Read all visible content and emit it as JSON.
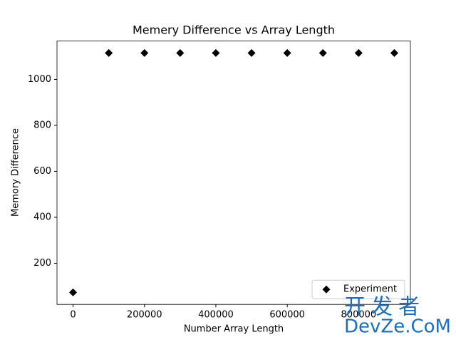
{
  "chart_data": {
    "type": "scatter",
    "title": "Memery Difference vs Array Length",
    "x_label": "Number Array Length",
    "y_label": "Memory Difference",
    "series": [
      {
        "name": "Experiment",
        "color": "#000000",
        "marker": "diamond",
        "x": [
          0,
          100000,
          200000,
          300000,
          400000,
          500000,
          600000,
          700000,
          800000,
          900000
        ],
        "values": [
          73,
          1115,
          1115,
          1115,
          1115,
          1115,
          1115,
          1115,
          1115,
          1115
        ]
      }
    ],
    "xlim": [
      -45000,
      945000
    ],
    "ylim": [
      21,
      1167
    ],
    "xticks": [
      0,
      200000,
      400000,
      600000,
      800000
    ],
    "yticks": [
      200,
      400,
      600,
      800,
      1000
    ],
    "legend": "lower right",
    "grid": false
  },
  "watermark": {
    "line1": "开发者",
    "line2": "DevZe.CoM"
  }
}
